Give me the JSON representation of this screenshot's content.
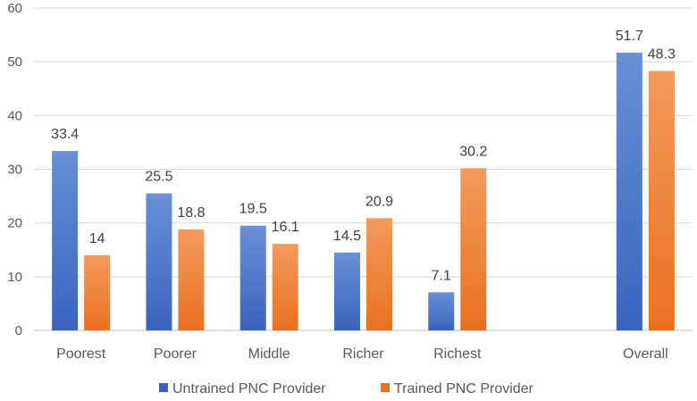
{
  "chart_data": {
    "type": "bar",
    "categories": [
      "Poorest",
      "Poorer",
      "Middle",
      "Richer",
      "Richest",
      "",
      "Overall"
    ],
    "series": [
      {
        "name": "Untrained PNC Provider",
        "values": [
          33.4,
          25.5,
          19.5,
          14.5,
          7.1,
          null,
          51.7
        ],
        "labels": [
          "33.4",
          "25.5",
          "19.5",
          "14.5",
          "7.1",
          "",
          "51.7"
        ]
      },
      {
        "name": "Trained PNC Provider",
        "values": [
          14,
          18.8,
          16.1,
          20.9,
          30.2,
          null,
          48.3
        ],
        "labels": [
          "14",
          "18.8",
          "16.1",
          "20.9",
          "30.2",
          "",
          "48.3"
        ]
      }
    ],
    "yticks": [
      "0",
      "10",
      "20",
      "30",
      "40",
      "50",
      "60"
    ],
    "ylim": [
      0,
      60
    ],
    "grid": true,
    "legend_position": "bottom",
    "colors": {
      "Untrained PNC Provider": {
        "light": "#6a8fd6",
        "dark": "#3a63bd"
      },
      "Trained PNC Provider": {
        "light": "#f49a5c",
        "dark": "#e8711f"
      }
    }
  }
}
